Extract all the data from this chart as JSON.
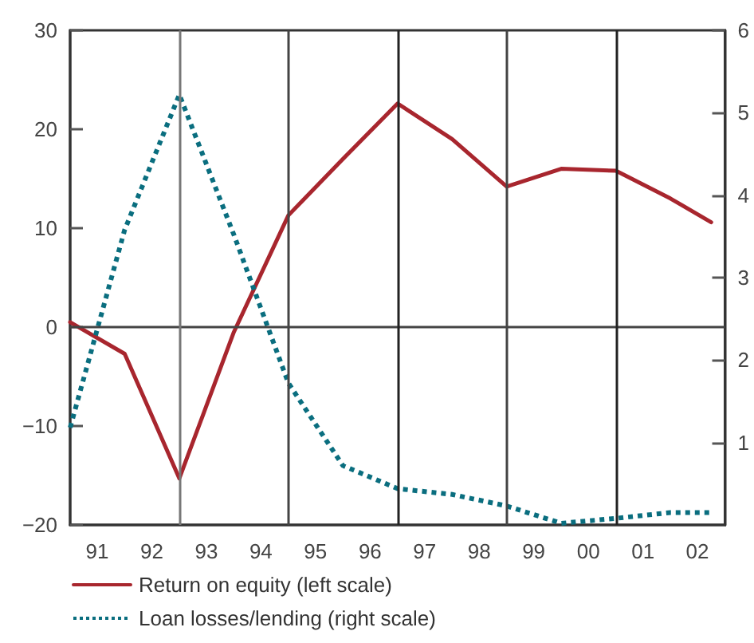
{
  "chart_data": {
    "type": "line",
    "x": [
      "1991",
      "1992",
      "1993",
      "1994",
      "1995",
      "1996",
      "1997",
      "1998",
      "1999",
      "2000",
      "2001",
      "2002",
      "2002-10"
    ],
    "xlim": [
      "1991",
      "2003"
    ],
    "xticks": [
      {
        "value": "1991-07",
        "label": "91"
      },
      {
        "value": "1992-07",
        "label": "92"
      },
      {
        "value": "1993-07",
        "label": "93"
      },
      {
        "value": "1994-07",
        "label": "94"
      },
      {
        "value": "1995-07",
        "label": "95"
      },
      {
        "value": "1996-07",
        "label": "96"
      },
      {
        "value": "1997-07",
        "label": "97"
      },
      {
        "value": "1998-07",
        "label": "98"
      },
      {
        "value": "1999-07",
        "label": "99"
      },
      {
        "value": "2000-07",
        "label": "00"
      },
      {
        "value": "2001-07",
        "label": "01"
      },
      {
        "value": "2002-07",
        "label": "02"
      }
    ],
    "ylim": [
      -20,
      30
    ],
    "yticks": [
      -20,
      -10,
      0,
      10,
      20,
      30
    ],
    "y2lim": [
      0,
      6
    ],
    "y2ticks": [
      1,
      2,
      3,
      4,
      5,
      6
    ],
    "series": [
      {
        "name": "Return on equity (left scale)",
        "color": "#a8262e",
        "line_style": "solid",
        "values": [
          0.5,
          -2.7,
          -15.3,
          -0.5,
          11.3,
          17,
          22.6,
          19,
          14.2,
          16,
          15.8,
          13,
          10.6
        ]
      },
      {
        "name": "Loan losses/lending (right scale)",
        "color": "#0a6e7f",
        "line_style": "dotted",
        "axis": "y2",
        "values": [
          1.18,
          3.58,
          5.22,
          3.52,
          1.72,
          0.72,
          0.44,
          0.37,
          0.23,
          0.02,
          0.08,
          0.15,
          0.15
        ]
      }
    ],
    "ref_lines": [
      {
        "axis": "y",
        "value": 0,
        "color": "#444444"
      },
      {
        "axis": "x",
        "value": "1993",
        "color": "#777777"
      },
      {
        "axis": "x",
        "value": "1995",
        "color": "#444444"
      },
      {
        "axis": "x",
        "value": "1997",
        "color": "#222222"
      },
      {
        "axis": "x",
        "value": "1999",
        "color": "#444444"
      },
      {
        "axis": "x",
        "value": "2001",
        "color": "#222222"
      }
    ],
    "legend": "bottom left",
    "marker": "none",
    "grid": false
  }
}
